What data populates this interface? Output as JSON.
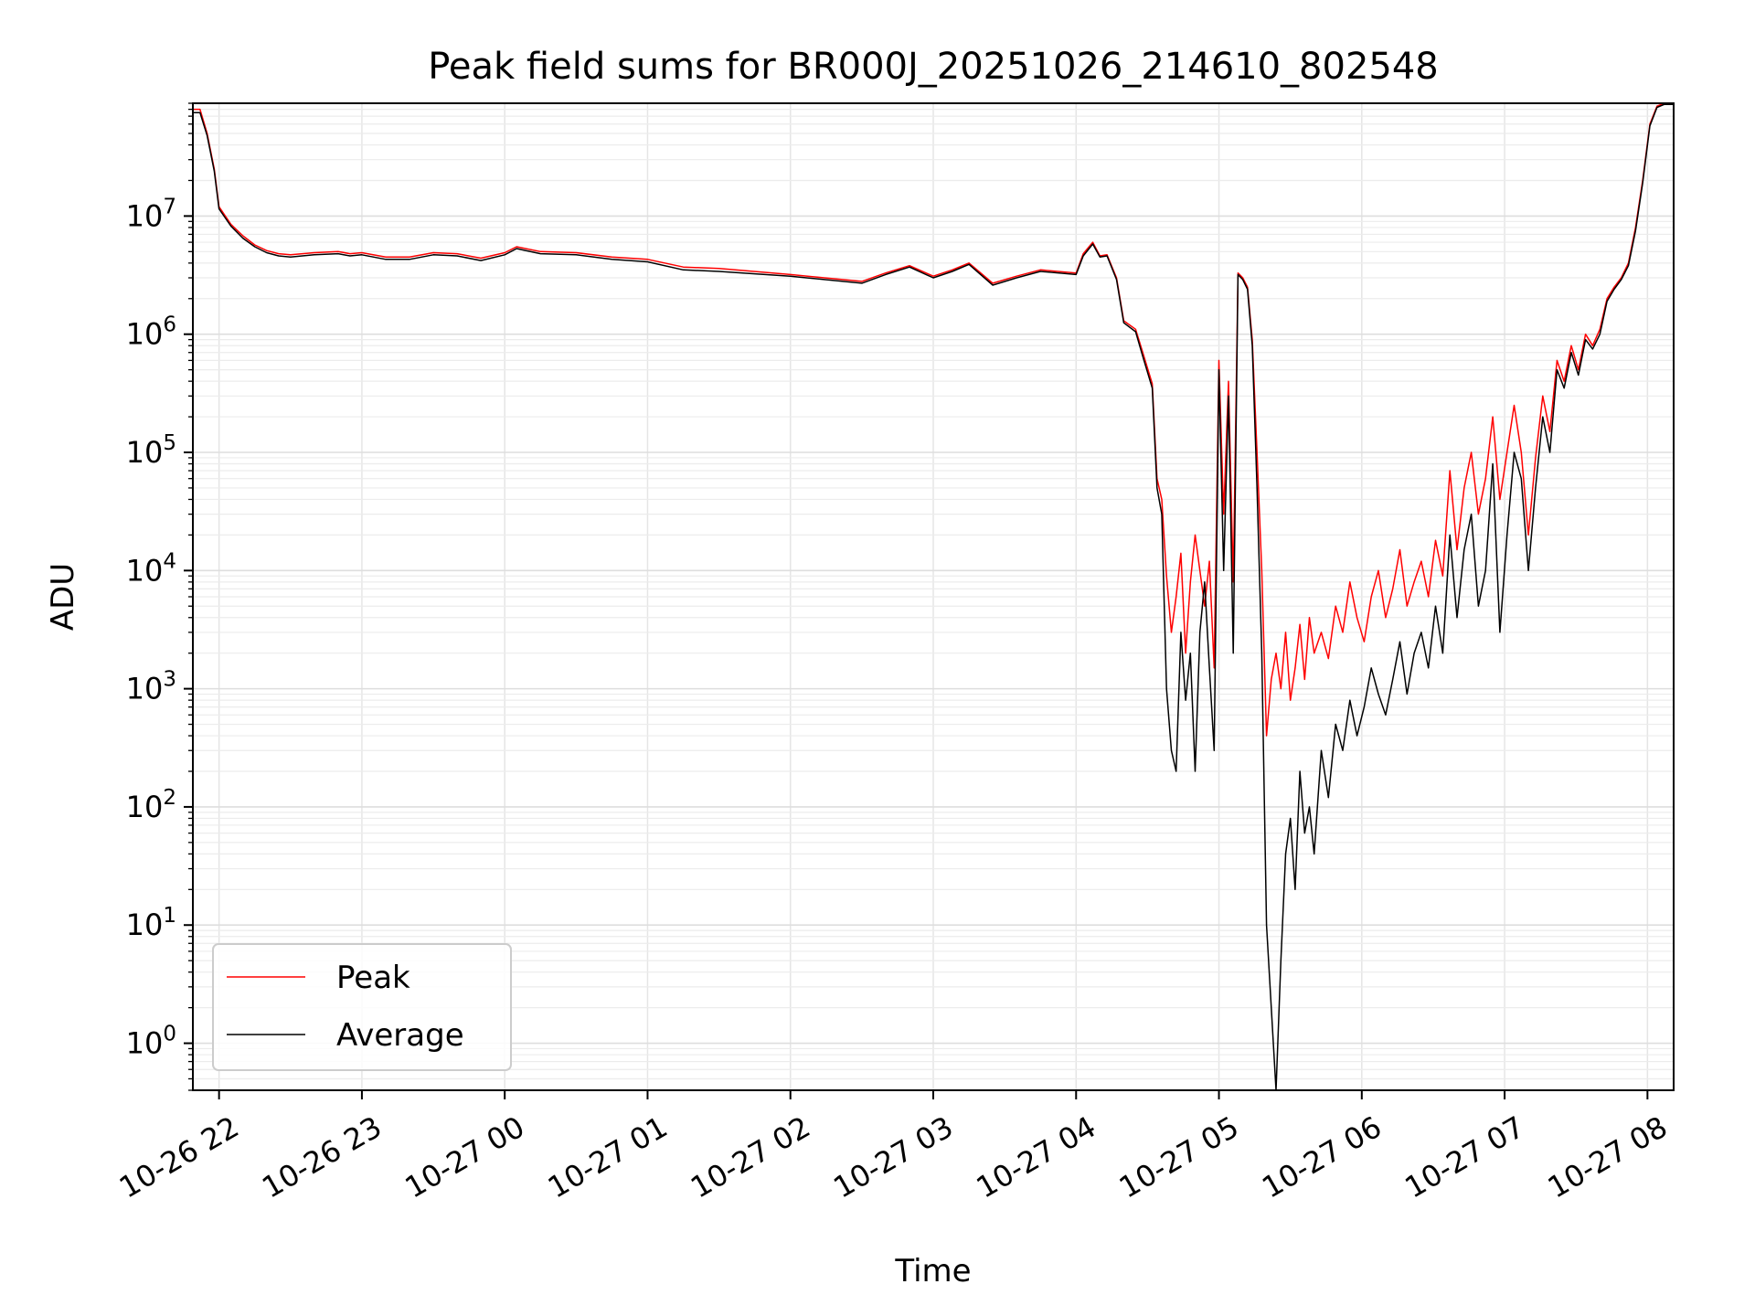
{
  "chart_data": {
    "type": "line",
    "title": "Peak field sums for BR000J_20251026_214610_802548",
    "xlabel": "Time",
    "ylabel": "ADU",
    "yscale": "log",
    "ylim": [
      0.4,
      90000000
    ],
    "xlim": [
      "2025-10-26 21:49",
      "2025-10-27 08:11"
    ],
    "grid": true,
    "legend_position": "lower-left",
    "x_ticks": [
      {
        "t": "2025-10-26 22:00",
        "label": "10-26 22"
      },
      {
        "t": "2025-10-26 23:00",
        "label": "10-26 23"
      },
      {
        "t": "2025-10-27 00:00",
        "label": "10-27 00"
      },
      {
        "t": "2025-10-27 01:00",
        "label": "10-27 01"
      },
      {
        "t": "2025-10-27 02:00",
        "label": "10-27 02"
      },
      {
        "t": "2025-10-27 03:00",
        "label": "10-27 03"
      },
      {
        "t": "2025-10-27 04:00",
        "label": "10-27 04"
      },
      {
        "t": "2025-10-27 05:00",
        "label": "10-27 05"
      },
      {
        "t": "2025-10-27 06:00",
        "label": "10-27 06"
      },
      {
        "t": "2025-10-27 07:00",
        "label": "10-27 07"
      },
      {
        "t": "2025-10-27 08:00",
        "label": "10-27 08"
      }
    ],
    "y_ticks": [
      {
        "value": 1,
        "base": "10",
        "exp": "0"
      },
      {
        "value": 10,
        "base": "10",
        "exp": "1"
      },
      {
        "value": 100,
        "base": "10",
        "exp": "2"
      },
      {
        "value": 1000,
        "base": "10",
        "exp": "3"
      },
      {
        "value": 10000,
        "base": "10",
        "exp": "4"
      },
      {
        "value": 100000,
        "base": "10",
        "exp": "5"
      },
      {
        "value": 1000000,
        "base": "10",
        "exp": "6"
      },
      {
        "value": 10000000,
        "base": "10",
        "exp": "7"
      }
    ],
    "series": [
      {
        "name": "Peak",
        "color": "#ff0000",
        "x": [
          "2025-10-26 21:49",
          "2025-10-26 21:52",
          "2025-10-26 21:55",
          "2025-10-26 21:58",
          "2025-10-26 22:00",
          "2025-10-26 22:05",
          "2025-10-26 22:10",
          "2025-10-26 22:15",
          "2025-10-26 22:20",
          "2025-10-26 22:25",
          "2025-10-26 22:30",
          "2025-10-26 22:40",
          "2025-10-26 22:50",
          "2025-10-26 22:55",
          "2025-10-26 23:00",
          "2025-10-26 23:10",
          "2025-10-26 23:20",
          "2025-10-26 23:30",
          "2025-10-26 23:40",
          "2025-10-26 23:50",
          "2025-10-27 00:00",
          "2025-10-27 00:05",
          "2025-10-27 00:15",
          "2025-10-27 00:30",
          "2025-10-27 00:45",
          "2025-10-27 01:00",
          "2025-10-27 01:15",
          "2025-10-27 01:30",
          "2025-10-27 02:00",
          "2025-10-27 02:30",
          "2025-10-27 02:40",
          "2025-10-27 02:50",
          "2025-10-27 03:00",
          "2025-10-27 03:08",
          "2025-10-27 03:15",
          "2025-10-27 03:25",
          "2025-10-27 03:35",
          "2025-10-27 03:45",
          "2025-10-27 04:00",
          "2025-10-27 04:03",
          "2025-10-27 04:07",
          "2025-10-27 04:10",
          "2025-10-27 04:13",
          "2025-10-27 04:17",
          "2025-10-27 04:20",
          "2025-10-27 04:25",
          "2025-10-27 04:28",
          "2025-10-27 04:32",
          "2025-10-27 04:34",
          "2025-10-27 04:36",
          "2025-10-27 04:38",
          "2025-10-27 04:40",
          "2025-10-27 04:42",
          "2025-10-27 04:44",
          "2025-10-27 04:46",
          "2025-10-27 04:48",
          "2025-10-27 04:50",
          "2025-10-27 04:52",
          "2025-10-27 04:54",
          "2025-10-27 04:56",
          "2025-10-27 04:58",
          "2025-10-27 05:00",
          "2025-10-27 05:02",
          "2025-10-27 05:04",
          "2025-10-27 05:06",
          "2025-10-27 05:08",
          "2025-10-27 05:10",
          "2025-10-27 05:12",
          "2025-10-27 05:14",
          "2025-10-27 05:16",
          "2025-10-27 05:18",
          "2025-10-27 05:20",
          "2025-10-27 05:22",
          "2025-10-27 05:24",
          "2025-10-27 05:26",
          "2025-10-27 05:28",
          "2025-10-27 05:30",
          "2025-10-27 05:32",
          "2025-10-27 05:34",
          "2025-10-27 05:36",
          "2025-10-27 05:38",
          "2025-10-27 05:40",
          "2025-10-27 05:43",
          "2025-10-27 05:46",
          "2025-10-27 05:49",
          "2025-10-27 05:52",
          "2025-10-27 05:55",
          "2025-10-27 05:58",
          "2025-10-27 06:01",
          "2025-10-27 06:04",
          "2025-10-27 06:07",
          "2025-10-27 06:10",
          "2025-10-27 06:13",
          "2025-10-27 06:16",
          "2025-10-27 06:19",
          "2025-10-27 06:22",
          "2025-10-27 06:25",
          "2025-10-27 06:28",
          "2025-10-27 06:31",
          "2025-10-27 06:34",
          "2025-10-27 06:37",
          "2025-10-27 06:40",
          "2025-10-27 06:43",
          "2025-10-27 06:46",
          "2025-10-27 06:49",
          "2025-10-27 06:52",
          "2025-10-27 06:55",
          "2025-10-27 06:58",
          "2025-10-27 07:01",
          "2025-10-27 07:04",
          "2025-10-27 07:07",
          "2025-10-27 07:10",
          "2025-10-27 07:13",
          "2025-10-27 07:16",
          "2025-10-27 07:19",
          "2025-10-27 07:22",
          "2025-10-27 07:25",
          "2025-10-27 07:28",
          "2025-10-27 07:31",
          "2025-10-27 07:34",
          "2025-10-27 07:37",
          "2025-10-27 07:40",
          "2025-10-27 07:43",
          "2025-10-27 07:46",
          "2025-10-27 07:49",
          "2025-10-27 07:52",
          "2025-10-27 07:55",
          "2025-10-27 07:58",
          "2025-10-27 08:01",
          "2025-10-27 08:04",
          "2025-10-27 08:07",
          "2025-10-27 08:11"
        ],
        "y": [
          80000000,
          80000000,
          50000000,
          25000000,
          12000000,
          8500000,
          6800000,
          5700000,
          5100000,
          4800000,
          4700000,
          4900000,
          5000000,
          4800000,
          4900000,
          4500000,
          4500000,
          4900000,
          4800000,
          4400000,
          4900000,
          5500000,
          5000000,
          4900000,
          4500000,
          4300000,
          3700000,
          3600000,
          3200000,
          2800000,
          3300000,
          3800000,
          3100000,
          3500000,
          4000000,
          2700000,
          3100000,
          3500000,
          3300000,
          4800000,
          6000000,
          4600000,
          4700000,
          3000000,
          1300000,
          1100000,
          700000,
          380000,
          60000,
          40000,
          9000,
          3000,
          6000,
          14000,
          2000,
          8000,
          20000,
          10000,
          5000,
          12000,
          1500,
          600000,
          30000,
          400000,
          8000,
          3300000,
          3000000,
          2500000,
          900000,
          100000,
          10000,
          400,
          1200,
          2000,
          1000,
          3000,
          800,
          1500,
          3500,
          1200,
          4000,
          2000,
          3000,
          1800,
          5000,
          3000,
          8000,
          4000,
          2500,
          6000,
          10000,
          4000,
          7000,
          15000,
          5000,
          8000,
          12000,
          6000,
          18000,
          9000,
          70000,
          15000,
          50000,
          100000,
          30000,
          60000,
          200000,
          40000,
          100000,
          250000,
          100000,
          20000,
          90000,
          300000,
          150000,
          600000,
          400000,
          800000,
          500000,
          1000000,
          800000,
          1100000,
          2000000,
          2500000,
          3000000,
          4000000,
          8000000,
          20000000,
          60000000,
          85000000,
          90000000,
          90000000
        ]
      },
      {
        "name": "Average",
        "color": "#000000",
        "x": [
          "2025-10-26 21:49",
          "2025-10-26 21:52",
          "2025-10-26 21:55",
          "2025-10-26 21:58",
          "2025-10-26 22:00",
          "2025-10-26 22:05",
          "2025-10-26 22:10",
          "2025-10-26 22:15",
          "2025-10-26 22:20",
          "2025-10-26 22:25",
          "2025-10-26 22:30",
          "2025-10-26 22:40",
          "2025-10-26 22:50",
          "2025-10-26 22:55",
          "2025-10-26 23:00",
          "2025-10-26 23:10",
          "2025-10-26 23:20",
          "2025-10-26 23:30",
          "2025-10-26 23:40",
          "2025-10-26 23:50",
          "2025-10-27 00:00",
          "2025-10-27 00:05",
          "2025-10-27 00:15",
          "2025-10-27 00:30",
          "2025-10-27 00:45",
          "2025-10-27 01:00",
          "2025-10-27 01:15",
          "2025-10-27 01:30",
          "2025-10-27 02:00",
          "2025-10-27 02:30",
          "2025-10-27 02:40",
          "2025-10-27 02:50",
          "2025-10-27 03:00",
          "2025-10-27 03:08",
          "2025-10-27 03:15",
          "2025-10-27 03:25",
          "2025-10-27 03:35",
          "2025-10-27 03:45",
          "2025-10-27 04:00",
          "2025-10-27 04:03",
          "2025-10-27 04:07",
          "2025-10-27 04:10",
          "2025-10-27 04:13",
          "2025-10-27 04:17",
          "2025-10-27 04:20",
          "2025-10-27 04:25",
          "2025-10-27 04:28",
          "2025-10-27 04:32",
          "2025-10-27 04:34",
          "2025-10-27 04:36",
          "2025-10-27 04:38",
          "2025-10-27 04:40",
          "2025-10-27 04:42",
          "2025-10-27 04:44",
          "2025-10-27 04:46",
          "2025-10-27 04:48",
          "2025-10-27 04:50",
          "2025-10-27 04:52",
          "2025-10-27 04:54",
          "2025-10-27 04:56",
          "2025-10-27 04:58",
          "2025-10-27 05:00",
          "2025-10-27 05:02",
          "2025-10-27 05:04",
          "2025-10-27 05:06",
          "2025-10-27 05:08",
          "2025-10-27 05:10",
          "2025-10-27 05:12",
          "2025-10-27 05:14",
          "2025-10-27 05:16",
          "2025-10-27 05:18",
          "2025-10-27 05:20",
          "2025-10-27 05:22",
          "2025-10-27 05:24",
          "2025-10-27 05:26",
          "2025-10-27 05:28",
          "2025-10-27 05:30",
          "2025-10-27 05:32",
          "2025-10-27 05:34",
          "2025-10-27 05:36",
          "2025-10-27 05:38",
          "2025-10-27 05:40",
          "2025-10-27 05:43",
          "2025-10-27 05:46",
          "2025-10-27 05:49",
          "2025-10-27 05:52",
          "2025-10-27 05:55",
          "2025-10-27 05:58",
          "2025-10-27 06:01",
          "2025-10-27 06:04",
          "2025-10-27 06:07",
          "2025-10-27 06:10",
          "2025-10-27 06:13",
          "2025-10-27 06:16",
          "2025-10-27 06:19",
          "2025-10-27 06:22",
          "2025-10-27 06:25",
          "2025-10-27 06:28",
          "2025-10-27 06:31",
          "2025-10-27 06:34",
          "2025-10-27 06:37",
          "2025-10-27 06:40",
          "2025-10-27 06:43",
          "2025-10-27 06:46",
          "2025-10-27 06:49",
          "2025-10-27 06:52",
          "2025-10-27 06:55",
          "2025-10-27 06:58",
          "2025-10-27 07:01",
          "2025-10-27 07:04",
          "2025-10-27 07:07",
          "2025-10-27 07:10",
          "2025-10-27 07:13",
          "2025-10-27 07:16",
          "2025-10-27 07:19",
          "2025-10-27 07:22",
          "2025-10-27 07:25",
          "2025-10-27 07:28",
          "2025-10-27 07:31",
          "2025-10-27 07:34",
          "2025-10-27 07:37",
          "2025-10-27 07:40",
          "2025-10-27 07:43",
          "2025-10-27 07:46",
          "2025-10-27 07:49",
          "2025-10-27 07:52",
          "2025-10-27 07:55",
          "2025-10-27 07:58",
          "2025-10-27 08:01",
          "2025-10-27 08:04",
          "2025-10-27 08:07",
          "2025-10-27 08:11"
        ],
        "y": [
          75000000,
          75000000,
          48000000,
          24000000,
          11500000,
          8200000,
          6500000,
          5500000,
          4900000,
          4600000,
          4500000,
          4700000,
          4800000,
          4600000,
          4700000,
          4300000,
          4300000,
          4700000,
          4600000,
          4200000,
          4700000,
          5300000,
          4800000,
          4700000,
          4300000,
          4100000,
          3500000,
          3400000,
          3100000,
          2700000,
          3200000,
          3700000,
          3000000,
          3400000,
          3900000,
          2600000,
          3000000,
          3400000,
          3200000,
          4600000,
          5800000,
          4500000,
          4600000,
          2900000,
          1250000,
          1050000,
          650000,
          350000,
          50000,
          30000,
          1000,
          300,
          200,
          3000,
          800,
          2000,
          200,
          3000,
          8000,
          1500,
          300,
          500000,
          10000,
          300000,
          2000,
          3200000,
          2900000,
          2400000,
          800000,
          50000,
          2000,
          10,
          2,
          0.4,
          5,
          40,
          80,
          20,
          200,
          60,
          100,
          40,
          300,
          120,
          500,
          300,
          800,
          400,
          700,
          1500,
          900,
          600,
          1200,
          2500,
          900,
          2000,
          3000,
          1500,
          5000,
          2000,
          20000,
          4000,
          15000,
          30000,
          5000,
          10000,
          80000,
          3000,
          20000,
          100000,
          60000,
          10000,
          50000,
          200000,
          100000,
          500000,
          350000,
          700000,
          450000,
          900000,
          750000,
          1000000,
          1900000,
          2400000,
          2900000,
          3800000,
          7500000,
          19000000,
          58000000,
          83000000,
          88000000,
          88000000
        ]
      }
    ]
  }
}
